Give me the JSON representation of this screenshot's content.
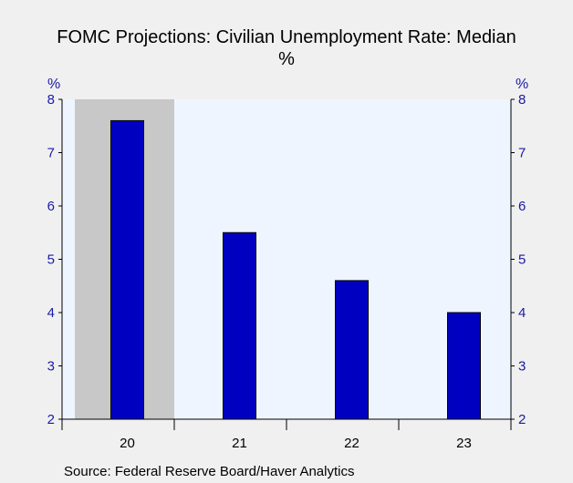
{
  "chart_data": {
    "type": "bar",
    "title": "FOMC Projections: Civilian Unemployment Rate: Median",
    "subtitle": "%",
    "y_unit_left": "%",
    "y_unit_right": "%",
    "categories": [
      "20",
      "21",
      "22",
      "23"
    ],
    "values": [
      7.6,
      5.5,
      4.6,
      4.0
    ],
    "ylim": [
      2,
      8
    ],
    "yticks": [
      2,
      3,
      4,
      5,
      6,
      7,
      8
    ],
    "highlight_category": "20",
    "legend": "none",
    "grid": false
  },
  "colors": {
    "bar_fill": "#0000c0",
    "bar_stroke": "#000000",
    "plot_bg": "#eef5ff",
    "highlight_bg": "#c8c8c8",
    "axis_text": "#1a1aa6"
  },
  "footer": {
    "source": "Source:  Federal Reserve Board/Haver Analytics"
  }
}
